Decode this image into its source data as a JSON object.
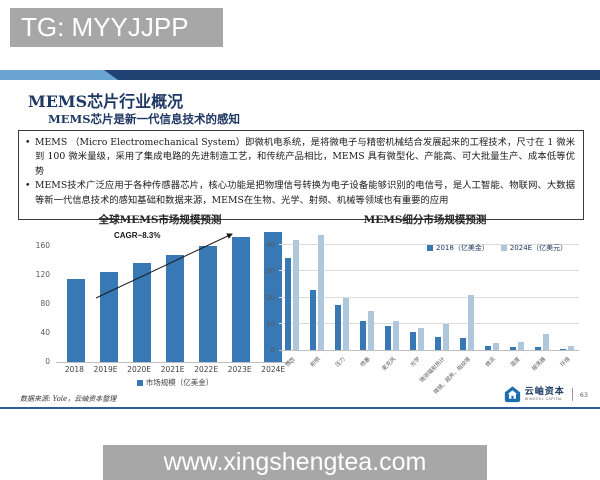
{
  "watermarks": {
    "top": "TG: MYYJJPP",
    "bottom": "www.xingshengtea.com"
  },
  "header": {
    "title": "MEMS芯片行业概况",
    "subtitle": "MEMS芯片是新一代信息技术的感知"
  },
  "bullet_marker": "•",
  "bullets": [
    "MEMS （Micro Electromechanical System）即微机电系统，是将微电子与精密机械结合发展起来的工程技术，尺寸在 1 微米到 100 微米量级，采用了集成电路的先进制造工艺，和传统产品相比，MEMS 具有微型化、产能高、可大批量生产、成本低等优势",
    "MEMS技术广泛应用于各种传感器芯片，核心功能是把物理信号转换为电子设备能够识别的电信号，是人工智能、物联网、大数据等新一代信息技术的感知基础和数据来源，MEMS在生物、光学、射频、机械等领域也有重要的应用"
  ],
  "chart_data": [
    {
      "type": "bar",
      "title": "全球MEMS市场规模预测",
      "categories": [
        "2018",
        "2019E",
        "2020E",
        "2021E",
        "2022E",
        "2023E",
        "2024E"
      ],
      "values": [
        115,
        124,
        136,
        148,
        160,
        172,
        180
      ],
      "yticks": [
        0,
        40,
        80,
        120,
        160
      ],
      "ylim": [
        0,
        185
      ],
      "legend": "市场规模（亿美金）",
      "annotation": "CAGR~8.3%",
      "grid": false,
      "bar_color": "#3878b4"
    },
    {
      "type": "bar",
      "title": "MEMS细分市场规模预测",
      "categories": [
        "惯性",
        "射频",
        "压力",
        "喷墨",
        "麦克风",
        "光学",
        "微测辐射热计",
        "微镜、超声、指纹等",
        "微流",
        "温度",
        "振荡器",
        "环境"
      ],
      "series": [
        {
          "name": "2018（亿美金）",
          "color": "#3878b4",
          "values": [
            35,
            23,
            17,
            11,
            9,
            7,
            5,
            4.7,
            1.6,
            1.2,
            1,
            0.5
          ]
        },
        {
          "name": "2024E（亿美元）",
          "color": "#afc7dd",
          "values": [
            42,
            44,
            20,
            15,
            11,
            8.5,
            10,
            21,
            2.5,
            3,
            6.3,
            1.5
          ]
        }
      ],
      "yticks": [
        0,
        10,
        20,
        30,
        40
      ],
      "ylim": [
        0,
        45
      ],
      "grid": true,
      "legend_position": "top-right"
    }
  ],
  "footer": {
    "source": "数据来源: Yole，云岫资本整理",
    "logo_name": "云岫资本",
    "logo_sub": "WINSOUL CAPITAL",
    "page": "63"
  },
  "colors": {
    "band_dark": "#1f4272",
    "band_light": "#69a5d0",
    "title_navy": "#1f3864",
    "bar_blue": "#3878b4",
    "bar_light": "#afc7dd",
    "footer_line": "#2d5b9e",
    "watermark_gray": "#a7a7a7",
    "logo_blue": "#1c6fae"
  }
}
